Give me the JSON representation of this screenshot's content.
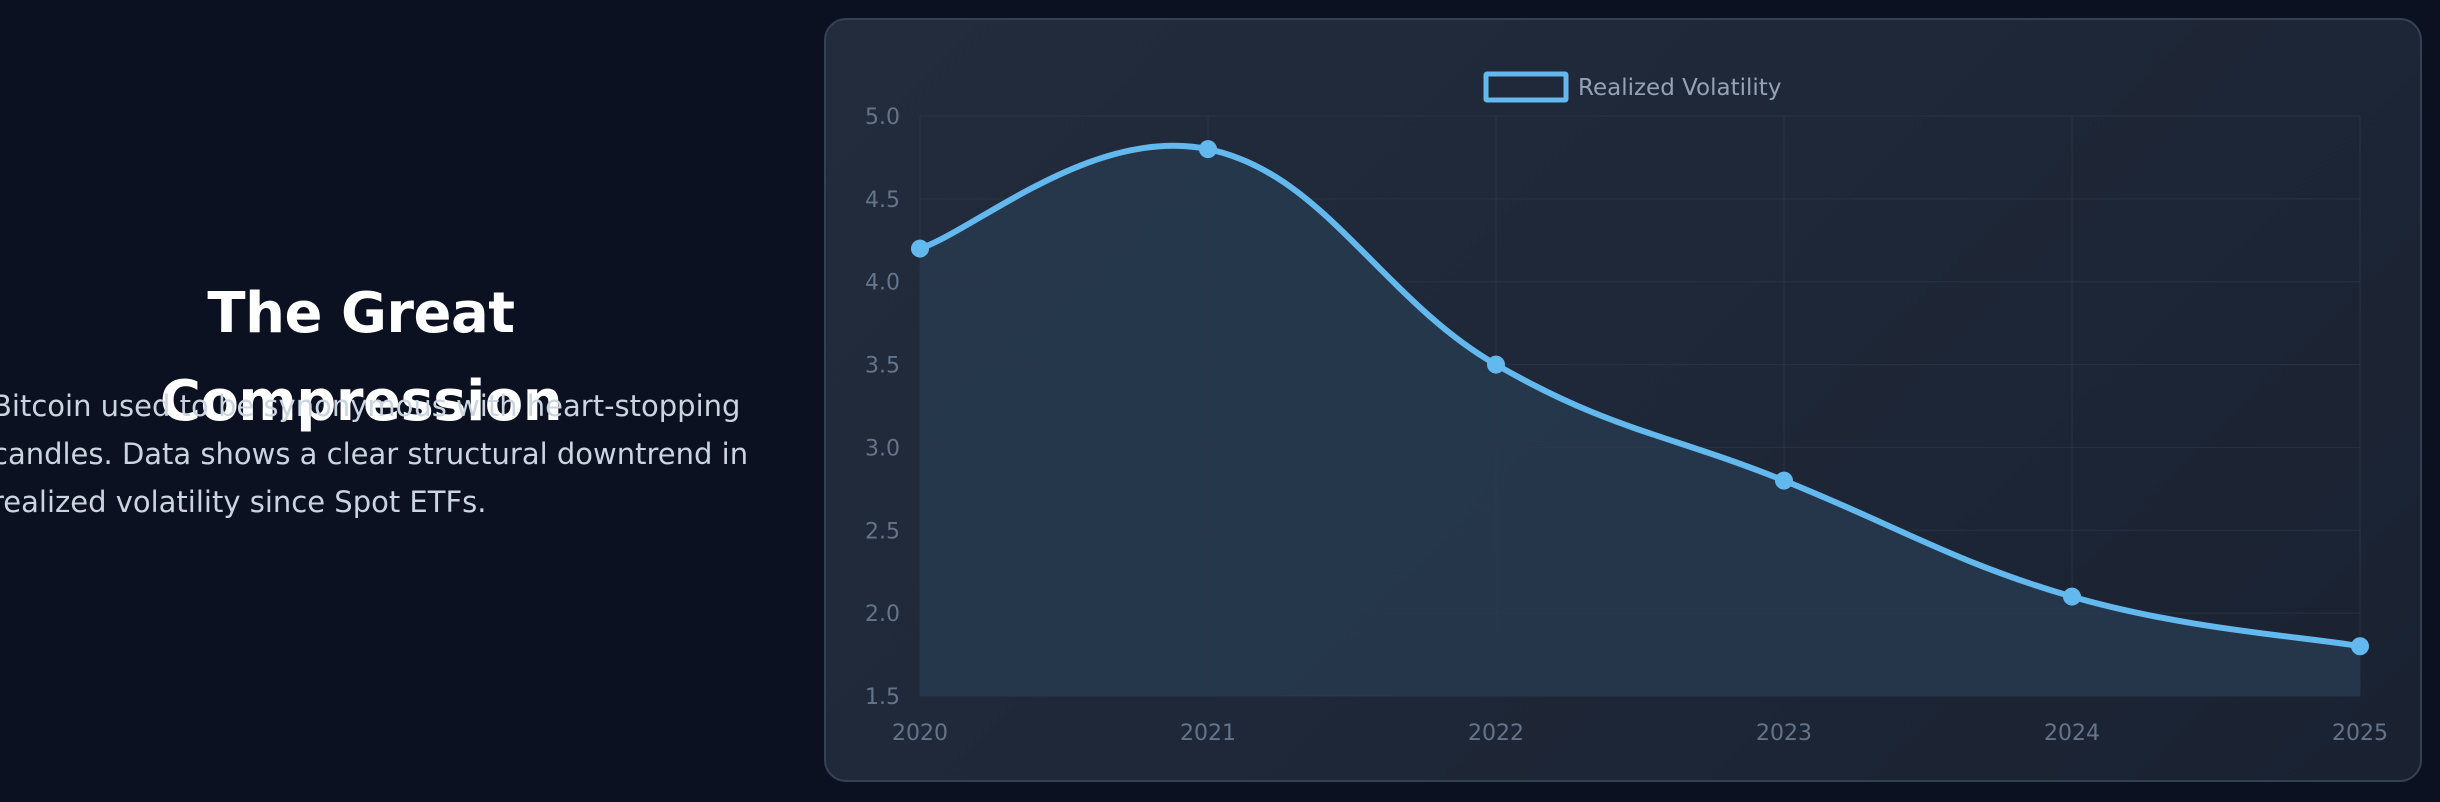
{
  "hero": {
    "title": "The Great Compression",
    "description": "Bitcoin used to be synonymous with heart-stopping candles. Data shows a clear structural downtrend in realized volatility since Spot ETFs."
  },
  "chart_data": {
    "type": "line",
    "title": "",
    "xlabel": "",
    "ylabel": "",
    "x": [
      "2020",
      "2021",
      "2022",
      "2023",
      "2024",
      "2025"
    ],
    "series": [
      {
        "name": "Realized Volatility",
        "values": [
          4.2,
          4.8,
          3.5,
          2.8,
          2.1,
          1.8
        ],
        "color": "#63b8ee",
        "fill": "#27394f"
      }
    ],
    "yticks": [
      "5.0",
      "4.5",
      "4.0",
      "3.5",
      "3.0",
      "2.5",
      "2.0",
      "1.5"
    ],
    "ylim": [
      1.5,
      5.0
    ],
    "grid": true,
    "legend": "top-center",
    "smooth": true
  }
}
